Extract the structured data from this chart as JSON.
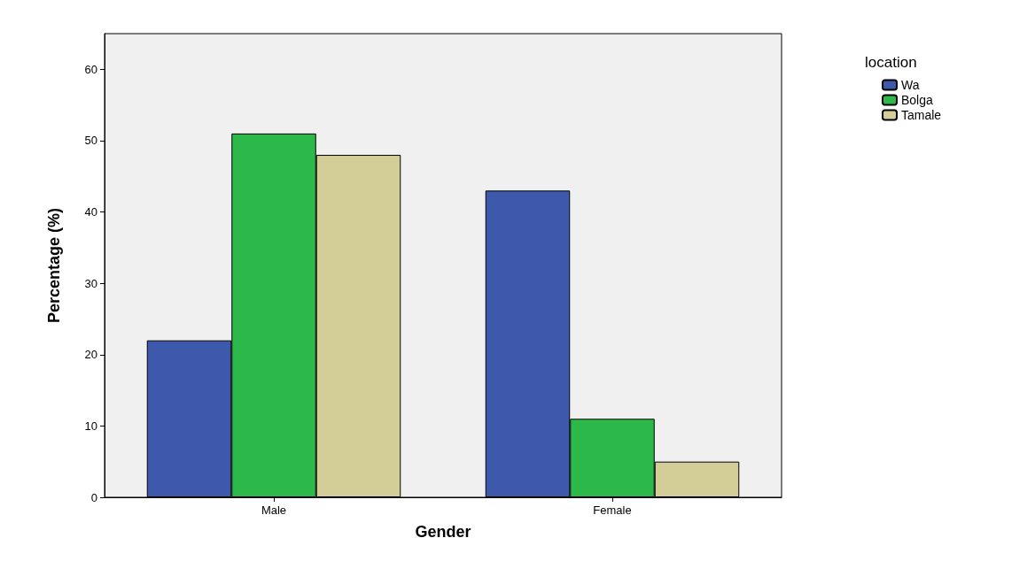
{
  "chart_data": {
    "type": "bar",
    "xlabel": "Gender",
    "ylabel": "Percentage (%)",
    "legend_title": "location",
    "categories": [
      "Male",
      "Female"
    ],
    "series": [
      {
        "name": "Wa",
        "color": "#3e58ac",
        "values": [
          22,
          43
        ]
      },
      {
        "name": "Bolga",
        "color": "#2db84a",
        "values": [
          51,
          11
        ]
      },
      {
        "name": "Tamale",
        "color": "#d3ce97",
        "values": [
          48,
          5
        ]
      }
    ],
    "ylim": [
      0,
      65
    ],
    "yticks": [
      0,
      10,
      20,
      30,
      40,
      50,
      60
    ],
    "grid": false,
    "legend": "top right"
  }
}
